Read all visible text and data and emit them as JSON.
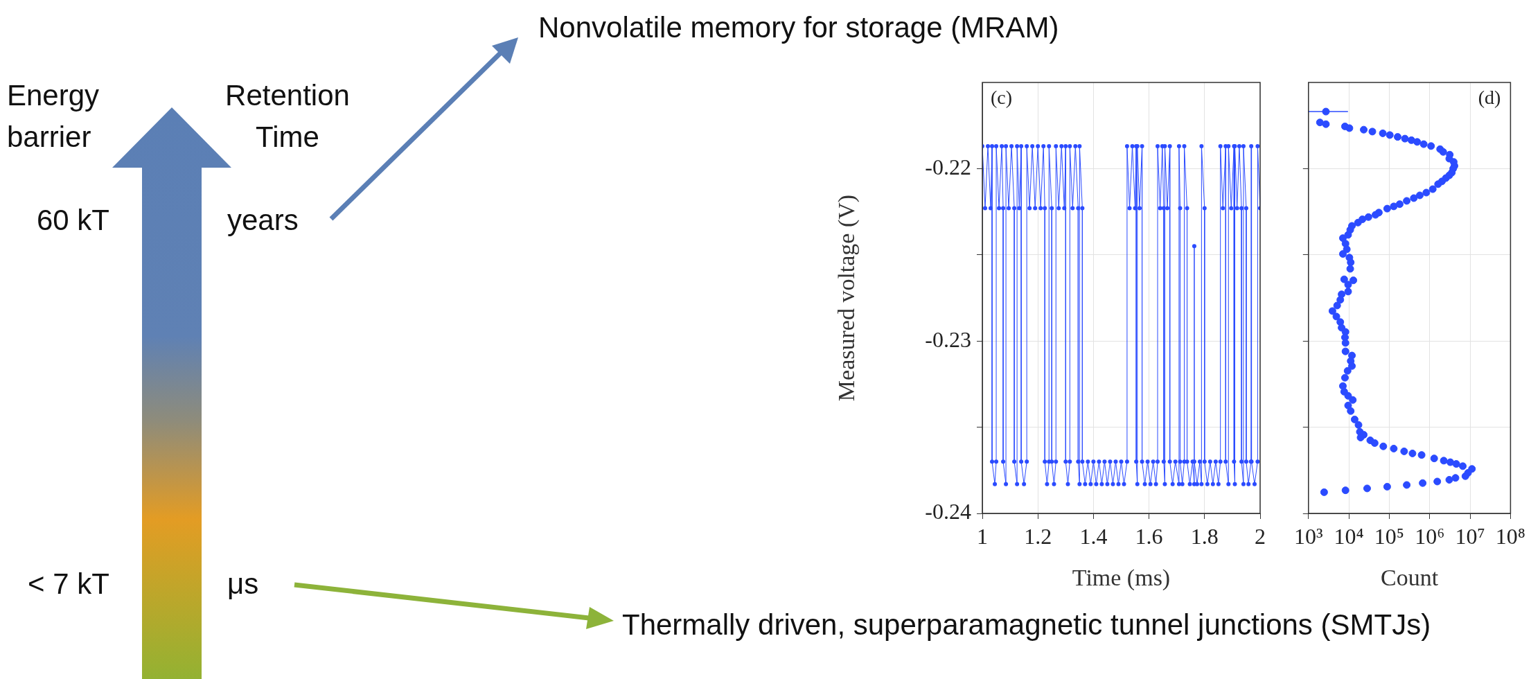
{
  "chart_data": [
    {
      "type": "other",
      "annotations": [
        "Energy barrier",
        "Retention Time",
        "60 kT",
        "years",
        "< 7 kT",
        "μs",
        "Nonvolatile memory for storage (MRAM)",
        "Thermally driven, superparamagnetic tunnel junctions (SMTJs)"
      ]
    },
    {
      "type": "line",
      "title": "(c)",
      "xlabel": "Time (ms)",
      "ylabel": "Measured voltage (V)",
      "color": "#2b4bff",
      "marker": "circle",
      "grid": true,
      "x": [
        1,
        1.01,
        1.02,
        1.03,
        1.035,
        1.035,
        1.045,
        1.05,
        1.05,
        1.06,
        1.07,
        1.075,
        1.075,
        1.085,
        1.085,
        1.095,
        1.105,
        1.115,
        1.115,
        1.125,
        1.125,
        1.133,
        1.14,
        1.14,
        1.15,
        1.16,
        1.16,
        1.17,
        1.18,
        1.19,
        1.2,
        1.21,
        1.22,
        1.225,
        1.225,
        1.233,
        1.24,
        1.24,
        1.25,
        1.25,
        1.258,
        1.265,
        1.265,
        1.275,
        1.285,
        1.295,
        1.3,
        1.3,
        1.308,
        1.315,
        1.315,
        1.325,
        1.335,
        1.345,
        1.345,
        1.35,
        1.35,
        1.36,
        1.36,
        1.37,
        1.38,
        1.39,
        1.4,
        1.41,
        1.42,
        1.43,
        1.44,
        1.45,
        1.46,
        1.47,
        1.48,
        1.49,
        1.5,
        1.51,
        1.521,
        1.521,
        1.53,
        1.54,
        1.55,
        1.554,
        1.554,
        1.558,
        1.558,
        1.566,
        1.575,
        1.575,
        1.585,
        1.595,
        1.605,
        1.615,
        1.625,
        1.631,
        1.631,
        1.64,
        1.648,
        1.653,
        1.653,
        1.657,
        1.657,
        1.666,
        1.675,
        1.675,
        1.685,
        1.695,
        1.708,
        1.708,
        1.712,
        1.712,
        1.72,
        1.727,
        1.727,
        1.737,
        1.737,
        1.747,
        1.757,
        1.763,
        1.763,
        1.763,
        1.773,
        1.783,
        1.789,
        1.789,
        1.8,
        1.8,
        1.81,
        1.82,
        1.83,
        1.84,
        1.85,
        1.857,
        1.857,
        1.866,
        1.876,
        1.876,
        1.886,
        1.886,
        1.896,
        1.906,
        1.906,
        1.909,
        1.909,
        1.917,
        1.925,
        1.933,
        1.933,
        1.94,
        1.94,
        1.95,
        1.95,
        1.958,
        1.967,
        1.968,
        1.969,
        1.98,
        1.991,
        1.991,
        2
      ],
      "values": [
        -0.2187,
        -0.2223,
        -0.2187,
        -0.2223,
        -0.2187,
        -0.237,
        -0.2383,
        -0.237,
        -0.2187,
        -0.2223,
        -0.2187,
        -0.2223,
        -0.237,
        -0.2383,
        -0.2187,
        -0.2223,
        -0.2187,
        -0.2223,
        -0.237,
        -0.2383,
        -0.2187,
        -0.2223,
        -0.2187,
        -0.237,
        -0.2383,
        -0.237,
        -0.2187,
        -0.2223,
        -0.2187,
        -0.2223,
        -0.2187,
        -0.2223,
        -0.2187,
        -0.2223,
        -0.237,
        -0.2383,
        -0.237,
        -0.2187,
        -0.2223,
        -0.237,
        -0.2383,
        -0.237,
        -0.2187,
        -0.2223,
        -0.2187,
        -0.2223,
        -0.2187,
        -0.237,
        -0.2383,
        -0.237,
        -0.2187,
        -0.2223,
        -0.2187,
        -0.2223,
        -0.237,
        -0.2383,
        -0.2187,
        -0.2223,
        -0.237,
        -0.2383,
        -0.237,
        -0.2383,
        -0.237,
        -0.2383,
        -0.237,
        -0.2383,
        -0.237,
        -0.2383,
        -0.237,
        -0.2383,
        -0.237,
        -0.2383,
        -0.237,
        -0.2383,
        -0.237,
        -0.2187,
        -0.2223,
        -0.2187,
        -0.2223,
        -0.2187,
        -0.237,
        -0.2383,
        -0.2187,
        -0.2223,
        -0.2187,
        -0.237,
        -0.2383,
        -0.237,
        -0.2383,
        -0.237,
        -0.2383,
        -0.237,
        -0.2187,
        -0.2223,
        -0.2187,
        -0.2223,
        -0.237,
        -0.2383,
        -0.2187,
        -0.2223,
        -0.2187,
        -0.237,
        -0.2383,
        -0.237,
        -0.2383,
        -0.2187,
        -0.2223,
        -0.237,
        -0.2383,
        -0.237,
        -0.2187,
        -0.2223,
        -0.237,
        -0.2383,
        -0.237,
        -0.2383,
        -0.2245,
        -0.237,
        -0.2383,
        -0.237,
        -0.2383,
        -0.2187,
        -0.2223,
        -0.237,
        -0.2383,
        -0.237,
        -0.2383,
        -0.237,
        -0.2383,
        -0.237,
        -0.2187,
        -0.2223,
        -0.2187,
        -0.237,
        -0.2383,
        -0.2187,
        -0.2223,
        -0.2187,
        -0.237,
        -0.2383,
        -0.2187,
        -0.2223,
        -0.2187,
        -0.2223,
        -0.237,
        -0.2383,
        -0.2187,
        -0.2223,
        -0.237,
        -0.2383,
        -0.237,
        -0.2187,
        -0.237,
        -0.2383,
        -0.237,
        -0.2187,
        -0.2223
      ],
      "xlim": [
        1,
        2
      ],
      "xticks": [
        1,
        1.2,
        1.4,
        1.6,
        1.8,
        2
      ],
      "ylim": [
        -0.24,
        -0.215
      ],
      "yticks": [
        -0.24,
        {
          "value": -0.235,
          "label": null
        },
        -0.23,
        {
          "value": -0.225,
          "label": null
        },
        -0.22
      ]
    },
    {
      "type": "scatter",
      "title": "(d)",
      "xlabel": "Count",
      "log": "x",
      "grid": true,
      "marker": "circle",
      "tick_labels": "x",
      "series": [
        {
          "color": "#2b4bff",
          "x": [
            1920,
            2700,
            8000,
            10300,
            23300,
            38100,
            69000,
            103000,
            161000,
            244000,
            353000,
            490000,
            711000,
            1080000,
            1810000,
            2160000,
            3140000,
            3050000,
            3930000,
            4100000,
            3810000,
            3530000,
            3050000,
            2510000,
            2010000,
            1610000,
            1190000,
            824000,
            569000,
            404000,
            270000,
            181000,
            129000,
            88700,
            55200,
            45500,
            30500,
            21600,
            16800,
            11900,
            10800,
            9570,
            7110,
            8240,
            8880,
            7110,
            10300,
            11100,
            10800,
            12900,
            7650,
            9570,
            9570,
            6600,
            6130,
            5120,
            3920,
            4900,
            6130,
            6600,
            8240,
            8000,
            8240,
            8240,
            11900,
            11100,
            11900,
            9290,
            8000,
            7110,
            7650,
            9570,
            12500,
            9570,
            11100,
            13900,
            17300,
            18700,
            23300,
            19500,
            33800,
            43500,
            71100,
            129000,
            233000,
            375000,
            631000,
            1290000,
            2230000,
            3240000,
            4550000,
            6590000,
            11100000,
            8870000,
            7650000,
            4350000,
            3050000,
            1540000,
            670000,
            270000,
            88700,
            28300,
            8240,
            2440
          ],
          "values": [
            -0.21732,
            -0.21742,
            -0.21755,
            -0.21765,
            -0.21774,
            -0.21785,
            -0.21795,
            -0.21805,
            -0.21816,
            -0.21826,
            -0.21835,
            -0.21845,
            -0.21858,
            -0.21869,
            -0.21887,
            -0.21903,
            -0.21919,
            -0.21942,
            -0.21961,
            -0.21984,
            -0.22,
            -0.22023,
            -0.22039,
            -0.22055,
            -0.22074,
            -0.2209,
            -0.22119,
            -0.22139,
            -0.22155,
            -0.22171,
            -0.22187,
            -0.22206,
            -0.22219,
            -0.22232,
            -0.22255,
            -0.22268,
            -0.22281,
            -0.22294,
            -0.22313,
            -0.22332,
            -0.22355,
            -0.22384,
            -0.22403,
            -0.22435,
            -0.22468,
            -0.22495,
            -0.22516,
            -0.22544,
            -0.22581,
            -0.22648,
            -0.22642,
            -0.22673,
            -0.22713,
            -0.22729,
            -0.22761,
            -0.22794,
            -0.22826,
            -0.22858,
            -0.2289,
            -0.22923,
            -0.22947,
            -0.22979,
            -0.23011,
            -0.2306,
            -0.23084,
            -0.23116,
            -0.23145,
            -0.23173,
            -0.23213,
            -0.23261,
            -0.23294,
            -0.23318,
            -0.23342,
            -0.23374,
            -0.23406,
            -0.23455,
            -0.23487,
            -0.23527,
            -0.23544,
            -0.2356,
            -0.23576,
            -0.23592,
            -0.23611,
            -0.23624,
            -0.2364,
            -0.23652,
            -0.23661,
            -0.23681,
            -0.23694,
            -0.23703,
            -0.23713,
            -0.23726,
            -0.23742,
            -0.23765,
            -0.23784,
            -0.23794,
            -0.23805,
            -0.23815,
            -0.23824,
            -0.23835,
            -0.23845,
            -0.23855,
            -0.23866,
            -0.23877
          ]
        },
        {
          "color": "#2b4bff",
          "x": [
            2700
          ],
          "values": [
            -0.21669
          ],
          "xerrors": [
            [
              1000,
              9500
            ]
          ]
        }
      ],
      "xlim": [
        1000,
        100000000
      ],
      "xticks": [
        {
          "value": 1000,
          "label": "10³"
        },
        {
          "value": 10000,
          "label": "10⁴"
        },
        {
          "value": 100000,
          "label": "10⁵"
        },
        {
          "value": 1000000,
          "label": "10⁶"
        },
        {
          "value": 10000000,
          "label": "10⁷"
        },
        {
          "value": 100000000,
          "label": "10⁸"
        }
      ],
      "ylim": [
        -0.24,
        -0.215
      ],
      "yticks": [
        -0.24,
        -0.235,
        -0.23,
        -0.225,
        -0.22
      ]
    }
  ]
}
